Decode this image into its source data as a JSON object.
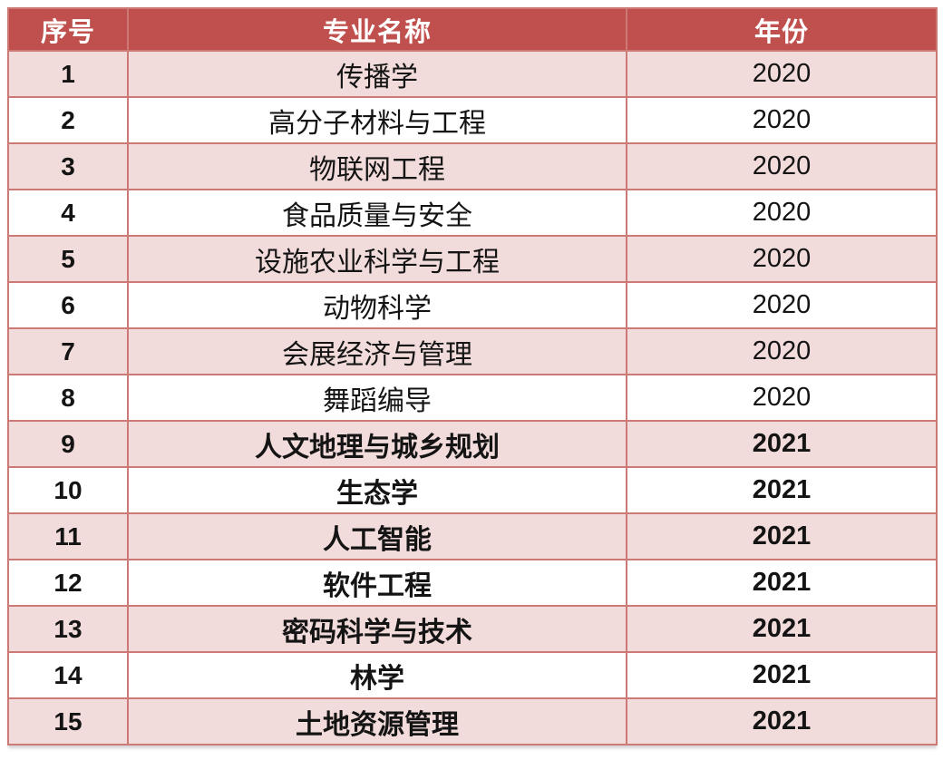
{
  "colors": {
    "header_bg": "#c0504d",
    "header_text": "#ffffff",
    "band_bg": "#f2dcdb",
    "white_bg": "#ffffff",
    "border": "#cd7975",
    "body_text": "#141414"
  },
  "chart_data": {
    "type": "table",
    "title": "",
    "columns": [
      "序号",
      "专业名称",
      "年份"
    ],
    "rows": [
      {
        "no": "1",
        "major": "传播学",
        "year": "2020",
        "emphasis": false
      },
      {
        "no": "2",
        "major": "高分子材料与工程",
        "year": "2020",
        "emphasis": false
      },
      {
        "no": "3",
        "major": "物联网工程",
        "year": "2020",
        "emphasis": false
      },
      {
        "no": "4",
        "major": "食品质量与安全",
        "year": "2020",
        "emphasis": false
      },
      {
        "no": "5",
        "major": "设施农业科学与工程",
        "year": "2020",
        "emphasis": false
      },
      {
        "no": "6",
        "major": "动物科学",
        "year": "2020",
        "emphasis": false
      },
      {
        "no": "7",
        "major": "会展经济与管理",
        "year": "2020",
        "emphasis": false
      },
      {
        "no": "8",
        "major": "舞蹈编导",
        "year": "2020",
        "emphasis": false
      },
      {
        "no": "9",
        "major": "人文地理与城乡规划",
        "year": "2021",
        "emphasis": true
      },
      {
        "no": "10",
        "major": "生态学",
        "year": "2021",
        "emphasis": true
      },
      {
        "no": "11",
        "major": "人工智能",
        "year": "2021",
        "emphasis": true
      },
      {
        "no": "12",
        "major": "软件工程",
        "year": "2021",
        "emphasis": true
      },
      {
        "no": "13",
        "major": "密码科学与技术",
        "year": "2021",
        "emphasis": true
      },
      {
        "no": "14",
        "major": "林学",
        "year": "2021",
        "emphasis": true
      },
      {
        "no": "15",
        "major": "土地资源管理",
        "year": "2021",
        "emphasis": true
      }
    ]
  }
}
